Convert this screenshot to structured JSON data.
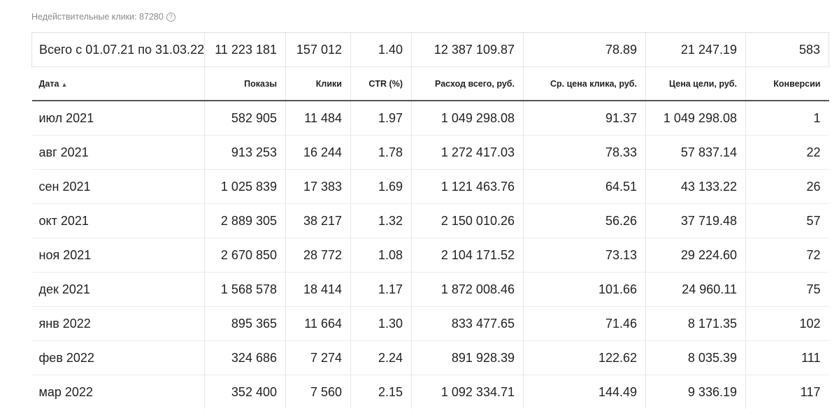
{
  "invalid_clicks": {
    "label": "Недействительные клики: 87280",
    "help_icon": "?"
  },
  "totals": {
    "label": "Всего с 01.07.21 по 31.03.22",
    "shows": "11 223 181",
    "clicks": "157 012",
    "ctr": "1.40",
    "spend": "12 387 109.87",
    "avg_cpc": "78.89",
    "goal_price": "21 247.19",
    "conversions": "583"
  },
  "columns": {
    "date": "Дата",
    "sort_arrow": "▲",
    "shows": "Показы",
    "clicks": "Клики",
    "ctr": "CTR (%)",
    "spend": "Расход всего, руб.",
    "avg_cpc": "Ср. цена клика, руб.",
    "goal_price": "Цена цели, руб.",
    "conversions": "Конверсии"
  },
  "rows": [
    [
      "июл 2021",
      "582 905",
      "11 484",
      "1.97",
      "1 049 298.08",
      "91.37",
      "1 049 298.08",
      "1"
    ],
    [
      "авг 2021",
      "913 253",
      "16 244",
      "1.78",
      "1 272 417.03",
      "78.33",
      "57 837.14",
      "22"
    ],
    [
      "сен 2021",
      "1 025 839",
      "17 383",
      "1.69",
      "1 121 463.76",
      "64.51",
      "43 133.22",
      "26"
    ],
    [
      "окт 2021",
      "2 889 305",
      "38 217",
      "1.32",
      "2 150 010.26",
      "56.26",
      "37 719.48",
      "57"
    ],
    [
      "ноя 2021",
      "2 670 850",
      "28 772",
      "1.08",
      "2 104 171.52",
      "73.13",
      "29 224.60",
      "72"
    ],
    [
      "дек 2021",
      "1 568 578",
      "18 414",
      "1.17",
      "1 872 008.46",
      "101.66",
      "24 960.11",
      "75"
    ],
    [
      "янв 2022",
      "895 365",
      "11 664",
      "1.30",
      "833 477.65",
      "71.46",
      "8 171.35",
      "102"
    ],
    [
      "фев 2022",
      "324 686",
      "7 274",
      "2.24",
      "891 928.39",
      "122.62",
      "8 035.39",
      "111"
    ],
    [
      "мар 2022",
      "352 400",
      "7 560",
      "2.15",
      "1 092 334.71",
      "144.49",
      "9 336.19",
      "117"
    ]
  ]
}
